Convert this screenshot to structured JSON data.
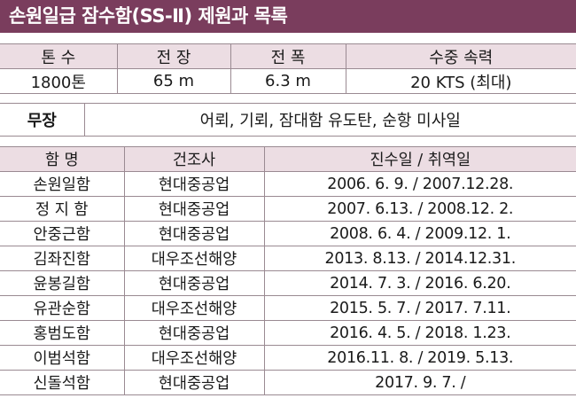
{
  "title": "손원일급 잠수함(SS-Ⅱ) 제원과 목록",
  "specs": {
    "headers": [
      "톤 수",
      "전 장",
      "전 폭",
      "수중 속력"
    ],
    "values": [
      "1800톤",
      "65 m",
      "6.3 m",
      "20 KTS (최대)"
    ]
  },
  "armament": {
    "label": "무장",
    "value": "어뢰, 기뢰, 잠대함 유도탄, 순항 미사일"
  },
  "ships": {
    "headers": [
      "함 명",
      "건조사",
      "진수일 / 취역일"
    ],
    "rows": [
      [
        "손원일함",
        "현대중공업",
        "2006. 6. 9. / 2007.12.28."
      ],
      [
        "정 지 함",
        "현대중공업",
        "2007. 6.13. / 2008.12. 2."
      ],
      [
        "안중근함",
        "현대중공업",
        "2008. 6. 4. / 2009.12. 1."
      ],
      [
        "김좌진함",
        "대우조선해양",
        "2013. 8.13. / 2014.12.31."
      ],
      [
        "윤봉길함",
        "현대중공업",
        "2014. 7. 3. / 2016. 6.20."
      ],
      [
        "유관순함",
        "대우조선해양",
        "2015. 5. 7. / 2017. 7.11."
      ],
      [
        "홍범도함",
        "현대중공업",
        "2016. 4. 5. / 2018. 1.23."
      ],
      [
        "이범석함",
        "대우조선해양",
        "2016.11. 8. / 2019. 5.13."
      ],
      [
        "신돌석함",
        "현대중공업",
        "2017. 9. 7. /"
      ]
    ]
  },
  "colors": {
    "title_bg": "#7a3d5d",
    "header_bg": "#ecdde3",
    "border": "#9a8a92"
  }
}
